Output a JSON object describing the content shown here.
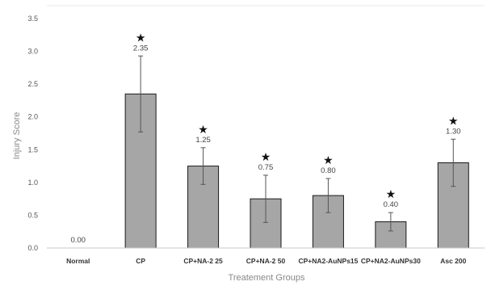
{
  "chart_data": {
    "type": "bar",
    "title": "",
    "xlabel": "Treatement Groups",
    "ylabel": "Injury Score",
    "ylim": [
      0,
      3.5
    ],
    "yticks": [
      "0.0",
      "0.5",
      "1.0",
      "1.5",
      "2.0",
      "2.5",
      "3.0",
      "3.5"
    ],
    "grid": false,
    "legend": "none",
    "categories": [
      "Normal",
      "CP",
      "CP+NA-2 25",
      "CP+NA-2 50",
      "CP+NA2-AuNPs15",
      "CP+NA2-AuNPs30",
      "Asc 200"
    ],
    "values": [
      0.0,
      2.35,
      1.25,
      0.75,
      0.8,
      0.4,
      1.3
    ],
    "value_labels": [
      "0.00",
      "2.35",
      "1.25",
      "0.75",
      "0.80",
      "0.40",
      "1.30"
    ],
    "error": [
      0,
      0.58,
      0.28,
      0.36,
      0.26,
      0.14,
      0.36
    ],
    "significance_marker": "★",
    "significant": [
      false,
      true,
      true,
      true,
      true,
      true,
      true
    ],
    "bar_color": "#a6a6a6",
    "bar_edge_color": "#1a1a1a"
  }
}
